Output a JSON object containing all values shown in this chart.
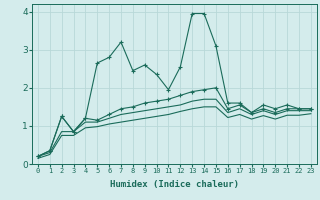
{
  "background_color": "#d4ecec",
  "grid_color": "#b8d8d8",
  "line_color": "#1a6b5a",
  "xlabel": "Humidex (Indice chaleur)",
  "xlim": [
    -0.5,
    23.5
  ],
  "ylim": [
    0,
    4.2
  ],
  "xticks": [
    0,
    1,
    2,
    3,
    4,
    5,
    6,
    7,
    8,
    9,
    10,
    11,
    12,
    13,
    14,
    15,
    16,
    17,
    18,
    19,
    20,
    21,
    22,
    23
  ],
  "yticks": [
    0,
    1,
    2,
    3,
    4
  ],
  "series": [
    [
      0.2,
      0.35,
      1.25,
      0.85,
      1.2,
      2.65,
      2.8,
      3.2,
      2.45,
      2.6,
      2.35,
      1.95,
      2.55,
      3.95,
      3.95,
      3.1,
      1.6,
      1.6,
      1.35,
      1.55,
      1.45,
      1.55,
      1.45,
      1.45
    ],
    [
      0.2,
      0.35,
      1.25,
      0.85,
      1.2,
      1.15,
      1.3,
      1.45,
      1.5,
      1.6,
      1.65,
      1.7,
      1.8,
      1.9,
      1.95,
      2.0,
      1.45,
      1.55,
      1.35,
      1.45,
      1.35,
      1.45,
      1.45,
      1.45
    ],
    [
      0.2,
      0.3,
      0.85,
      0.85,
      1.1,
      1.1,
      1.2,
      1.3,
      1.35,
      1.4,
      1.45,
      1.5,
      1.55,
      1.65,
      1.7,
      1.7,
      1.35,
      1.45,
      1.3,
      1.4,
      1.3,
      1.4,
      1.4,
      1.4
    ],
    [
      0.15,
      0.25,
      0.75,
      0.75,
      0.95,
      0.98,
      1.05,
      1.1,
      1.15,
      1.2,
      1.25,
      1.3,
      1.38,
      1.45,
      1.5,
      1.5,
      1.22,
      1.3,
      1.18,
      1.27,
      1.18,
      1.28,
      1.28,
      1.32
    ]
  ],
  "markers": [
    true,
    true,
    false,
    false
  ]
}
